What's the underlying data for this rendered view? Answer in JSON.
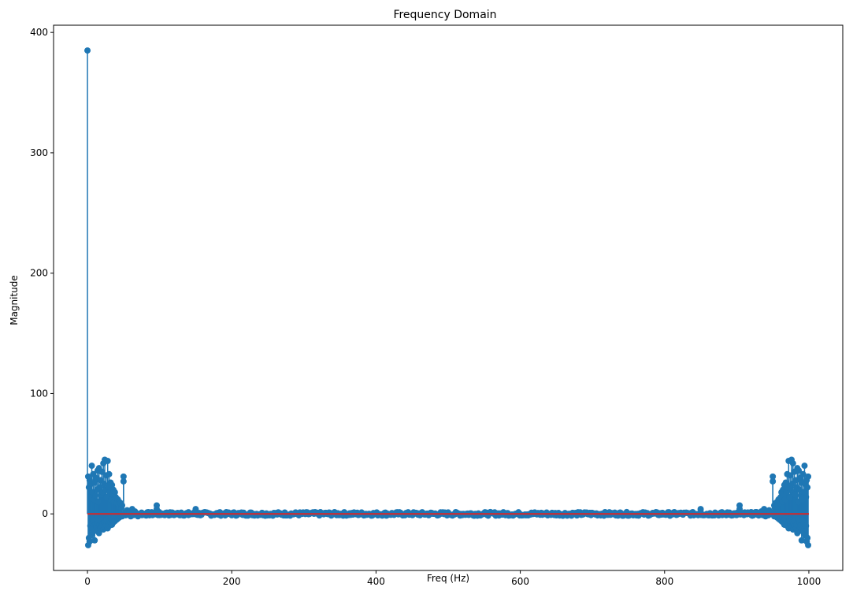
{
  "chart_data": {
    "type": "stem",
    "title": "Frequency Domain",
    "xlabel": "Freq (Hz)",
    "ylabel": "Magnitude",
    "xlim": [
      -47,
      1047
    ],
    "ylim": [
      -47,
      406
    ],
    "xticks": [
      0,
      200,
      400,
      600,
      800,
      1000
    ],
    "yticks": [
      0,
      100,
      200,
      300,
      400
    ],
    "grid": false,
    "legend": null,
    "colors": {
      "stem": "#1f77b4",
      "baseline": "#d62728",
      "axes": "#000000"
    },
    "baseline_value": 0,
    "series": [
      {
        "points": [
          [
            0,
            385
          ],
          [
            1,
            31
          ],
          [
            1,
            -26
          ],
          [
            2,
            22
          ],
          [
            2,
            -20
          ],
          [
            3,
            28
          ],
          [
            3,
            -23
          ],
          [
            4,
            14
          ],
          [
            4,
            -10
          ],
          [
            5,
            25
          ],
          [
            5,
            -18
          ],
          [
            6,
            40
          ],
          [
            6,
            -12
          ],
          [
            7,
            18
          ],
          [
            7,
            -8
          ],
          [
            8,
            33
          ],
          [
            8,
            -15
          ],
          [
            9,
            12
          ],
          [
            9,
            -6
          ],
          [
            10,
            26
          ],
          [
            10,
            -22
          ],
          [
            11,
            15
          ],
          [
            11,
            -9
          ],
          [
            12,
            30
          ],
          [
            12,
            -11
          ],
          [
            13,
            20
          ],
          [
            13,
            -7
          ],
          [
            14,
            36
          ],
          [
            14,
            -14
          ],
          [
            15,
            10
          ],
          [
            15,
            -5
          ],
          [
            16,
            38
          ],
          [
            16,
            -16
          ],
          [
            17,
            22
          ],
          [
            17,
            -9
          ],
          [
            18,
            28
          ],
          [
            18,
            -12
          ],
          [
            19,
            16
          ],
          [
            19,
            -6
          ],
          [
            20,
            35
          ],
          [
            20,
            -10
          ],
          [
            21,
            18
          ],
          [
            21,
            -8
          ],
          [
            22,
            42
          ],
          [
            22,
            -13
          ],
          [
            23,
            25
          ],
          [
            23,
            -7
          ],
          [
            24,
            45
          ],
          [
            24,
            -11
          ],
          [
            25,
            20
          ],
          [
            25,
            -6
          ],
          [
            26,
            32
          ],
          [
            26,
            -9
          ],
          [
            27,
            14
          ],
          [
            27,
            -5
          ],
          [
            28,
            44
          ],
          [
            28,
            -12
          ],
          [
            29,
            22
          ],
          [
            29,
            -8
          ],
          [
            30,
            33
          ],
          [
            30,
            -10
          ],
          [
            31,
            18
          ],
          [
            31,
            -6
          ],
          [
            32,
            26
          ],
          [
            32,
            -7
          ],
          [
            33,
            12
          ],
          [
            33,
            -4
          ],
          [
            34,
            24
          ],
          [
            34,
            -9
          ],
          [
            35,
            16
          ],
          [
            35,
            -5
          ],
          [
            36,
            20
          ],
          [
            36,
            -7
          ],
          [
            37,
            10
          ],
          [
            37,
            -3
          ],
          [
            38,
            18
          ],
          [
            38,
            -6
          ],
          [
            39,
            14
          ],
          [
            39,
            -4
          ],
          [
            40,
            13
          ],
          [
            40,
            -5
          ],
          [
            41,
            9
          ],
          [
            41,
            -3
          ],
          [
            42,
            12
          ],
          [
            42,
            -4
          ],
          [
            43,
            8
          ],
          [
            43,
            -2
          ],
          [
            44,
            10
          ],
          [
            44,
            -3
          ],
          [
            45,
            6
          ],
          [
            45,
            -2
          ],
          [
            46,
            9
          ],
          [
            46,
            -2
          ],
          [
            47,
            5
          ],
          [
            47,
            -1
          ],
          [
            48,
            7
          ],
          [
            48,
            -2
          ],
          [
            50,
            31
          ],
          [
            50,
            27
          ],
          [
            55,
            3
          ],
          [
            58,
            2
          ],
          [
            60,
            -2
          ],
          [
            62,
            4
          ],
          [
            64,
            -1
          ],
          [
            66,
            2
          ],
          [
            70,
            -2
          ],
          [
            75,
            1
          ],
          [
            80,
            -1
          ],
          [
            85,
            1
          ],
          [
            90,
            -1
          ],
          [
            96,
            7
          ],
          [
            96,
            4
          ],
          [
            100,
            -1
          ],
          [
            110,
            1
          ],
          [
            120,
            -1
          ],
          [
            130,
            1
          ],
          [
            140,
            -1
          ],
          [
            150,
            4
          ],
          [
            150,
            2
          ],
          [
            850,
            4
          ],
          [
            850,
            2
          ],
          [
            860,
            -1
          ],
          [
            870,
            1
          ],
          [
            880,
            -1
          ],
          [
            890,
            1
          ],
          [
            900,
            -1
          ],
          [
            904,
            7
          ],
          [
            904,
            4
          ],
          [
            910,
            -1
          ],
          [
            915,
            1
          ],
          [
            920,
            -1
          ],
          [
            925,
            1
          ],
          [
            930,
            -1
          ],
          [
            934,
            2
          ],
          [
            936,
            -1
          ],
          [
            938,
            4
          ],
          [
            940,
            -2
          ],
          [
            942,
            2
          ],
          [
            945,
            3
          ],
          [
            950,
            31
          ],
          [
            950,
            27
          ],
          [
            952,
            7
          ],
          [
            952,
            -2
          ],
          [
            953,
            5
          ],
          [
            953,
            -1
          ],
          [
            954,
            9
          ],
          [
            954,
            -2
          ],
          [
            955,
            6
          ],
          [
            955,
            -2
          ],
          [
            956,
            10
          ],
          [
            956,
            -3
          ],
          [
            957,
            8
          ],
          [
            957,
            -2
          ],
          [
            958,
            12
          ],
          [
            958,
            -4
          ],
          [
            959,
            9
          ],
          [
            959,
            -3
          ],
          [
            960,
            13
          ],
          [
            960,
            -5
          ],
          [
            961,
            14
          ],
          [
            961,
            -4
          ],
          [
            962,
            18
          ],
          [
            962,
            -6
          ],
          [
            963,
            10
          ],
          [
            963,
            -3
          ],
          [
            964,
            20
          ],
          [
            964,
            -7
          ],
          [
            965,
            16
          ],
          [
            965,
            -5
          ],
          [
            966,
            24
          ],
          [
            966,
            -9
          ],
          [
            967,
            12
          ],
          [
            967,
            -4
          ],
          [
            968,
            26
          ],
          [
            968,
            -7
          ],
          [
            969,
            18
          ],
          [
            969,
            -6
          ],
          [
            970,
            33
          ],
          [
            970,
            -10
          ],
          [
            971,
            22
          ],
          [
            971,
            -8
          ],
          [
            972,
            44
          ],
          [
            972,
            -12
          ],
          [
            973,
            14
          ],
          [
            973,
            -5
          ],
          [
            974,
            32
          ],
          [
            974,
            -9
          ],
          [
            975,
            20
          ],
          [
            975,
            -6
          ],
          [
            976,
            45
          ],
          [
            976,
            -11
          ],
          [
            977,
            25
          ],
          [
            977,
            -7
          ],
          [
            978,
            42
          ],
          [
            978,
            -13
          ],
          [
            979,
            18
          ],
          [
            979,
            -8
          ],
          [
            980,
            35
          ],
          [
            980,
            -10
          ],
          [
            981,
            16
          ],
          [
            981,
            -6
          ],
          [
            982,
            28
          ],
          [
            982,
            -12
          ],
          [
            983,
            22
          ],
          [
            983,
            -9
          ],
          [
            984,
            38
          ],
          [
            984,
            -16
          ],
          [
            985,
            10
          ],
          [
            985,
            -5
          ],
          [
            986,
            36
          ],
          [
            986,
            -14
          ],
          [
            987,
            20
          ],
          [
            987,
            -7
          ],
          [
            988,
            30
          ],
          [
            988,
            -11
          ],
          [
            989,
            15
          ],
          [
            989,
            -9
          ],
          [
            990,
            26
          ],
          [
            990,
            -22
          ],
          [
            991,
            12
          ],
          [
            991,
            -6
          ],
          [
            992,
            33
          ],
          [
            992,
            -15
          ],
          [
            993,
            18
          ],
          [
            993,
            -8
          ],
          [
            994,
            40
          ],
          [
            994,
            -12
          ],
          [
            995,
            25
          ],
          [
            995,
            -18
          ],
          [
            996,
            14
          ],
          [
            996,
            -10
          ],
          [
            997,
            28
          ],
          [
            997,
            -23
          ],
          [
            998,
            22
          ],
          [
            998,
            -20
          ],
          [
            999,
            31
          ],
          [
            999,
            -26
          ]
        ],
        "noise_floor": {
          "x_range": [
            50,
            950
          ],
          "amplitude": 1.5
        }
      }
    ]
  }
}
